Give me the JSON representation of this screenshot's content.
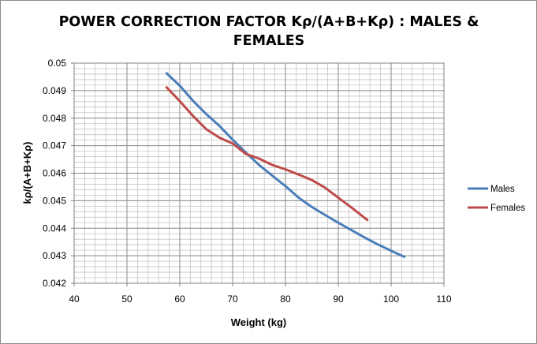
{
  "chart_data": {
    "type": "line",
    "title_lines": [
      "POWER CORRECTION FACTOR Kρ/(A+B+Kρ) : MALES &",
      "FEMALES"
    ],
    "xlabel": "Weight (kg)",
    "ylabel": "kρ/(A+B+Kρ)",
    "xlim": [
      40,
      110
    ],
    "ylim": [
      0.042,
      0.05
    ],
    "x_ticks": [
      40,
      50,
      60,
      70,
      80,
      90,
      100,
      110
    ],
    "y_ticks": [
      0.042,
      0.043,
      0.044,
      0.045,
      0.046,
      0.047,
      0.048,
      0.049,
      0.05
    ],
    "x_tick_labels": [
      "40",
      "50",
      "60",
      "70",
      "80",
      "90",
      "100",
      "110"
    ],
    "y_tick_labels": [
      "0.042",
      "0.043",
      "0.044",
      "0.045",
      "0.046",
      "0.047",
      "0.048",
      "0.049",
      "0.05"
    ],
    "grid": true,
    "legend_position": "right",
    "series": [
      {
        "name": "Males",
        "color": "#4a7ebb",
        "points": [
          [
            57.5,
            0.04963
          ],
          [
            60,
            0.04918
          ],
          [
            62.5,
            0.04863
          ],
          [
            65,
            0.04815
          ],
          [
            67.5,
            0.04772
          ],
          [
            70,
            0.04722
          ],
          [
            72.5,
            0.04675
          ],
          [
            75,
            0.0463
          ],
          [
            77.5,
            0.04591
          ],
          [
            80,
            0.04553
          ],
          [
            82.5,
            0.04511
          ],
          [
            85,
            0.04477
          ],
          [
            87.5,
            0.04448
          ],
          [
            90,
            0.0442
          ],
          [
            92.5,
            0.04393
          ],
          [
            95,
            0.04366
          ],
          [
            97.5,
            0.04341
          ],
          [
            100,
            0.04318
          ],
          [
            102.5,
            0.04296
          ]
        ]
      },
      {
        "name": "Females",
        "color": "#be4b48",
        "points": [
          [
            57.5,
            0.04912
          ],
          [
            60,
            0.04862
          ],
          [
            62.5,
            0.04808
          ],
          [
            65,
            0.0476
          ],
          [
            67.5,
            0.04729
          ],
          [
            70,
            0.04708
          ],
          [
            72.5,
            0.0467
          ],
          [
            75,
            0.04653
          ],
          [
            77.5,
            0.0463
          ],
          [
            80,
            0.04614
          ],
          [
            82.5,
            0.04595
          ],
          [
            85,
            0.04575
          ],
          [
            87.5,
            0.04547
          ],
          [
            90,
            0.04511
          ],
          [
            92.5,
            0.04475
          ],
          [
            95.5,
            0.0443
          ]
        ]
      }
    ]
  }
}
